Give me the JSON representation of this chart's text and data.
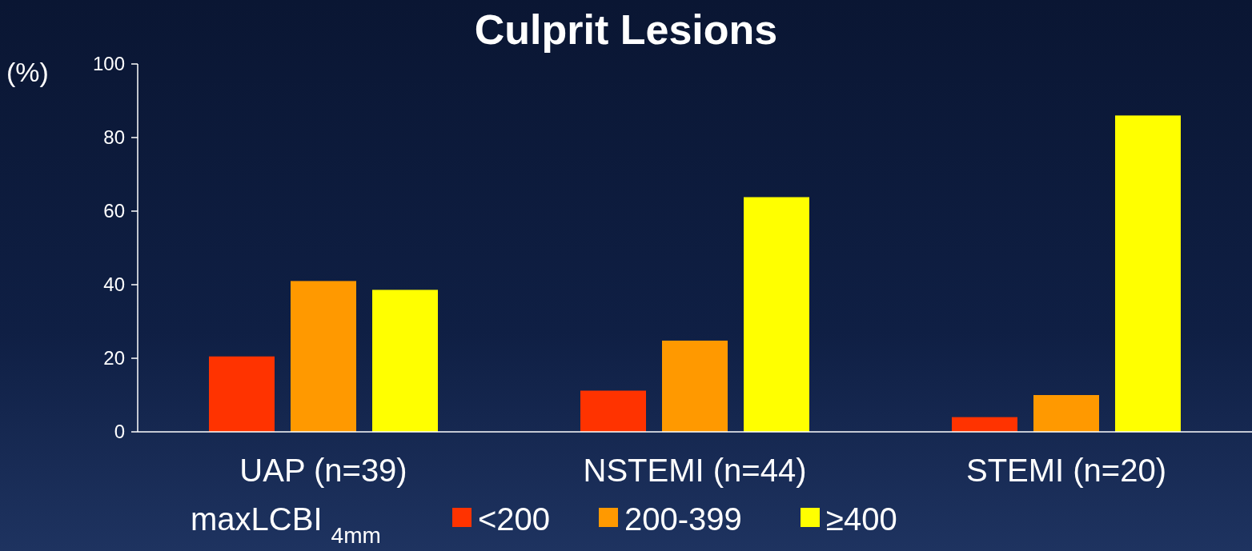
{
  "chart_data": {
    "type": "bar",
    "title": "Culprit Lesions",
    "ylabel": "(%)",
    "legend_title": "maxLCBI $_{4mm}$",
    "categories": [
      "UAP (n=39)",
      "NSTEMI (n=44)",
      "STEMI (n=20)"
    ],
    "series": [
      {
        "name": "<200",
        "color": "#ff3300",
        "values": [
          20.5,
          11.2,
          4
        ]
      },
      {
        "name": "200-399",
        "color": "#ff9900",
        "values": [
          41,
          24.8,
          10
        ]
      },
      {
        "name": "≥400",
        "color": "#ffff00",
        "values": [
          38.6,
          63.8,
          86
        ]
      }
    ],
    "ylim": [
      0,
      100
    ],
    "yticks": [
      0,
      20,
      40,
      60,
      80,
      100
    ],
    "grid": false,
    "legend": "bottom"
  }
}
